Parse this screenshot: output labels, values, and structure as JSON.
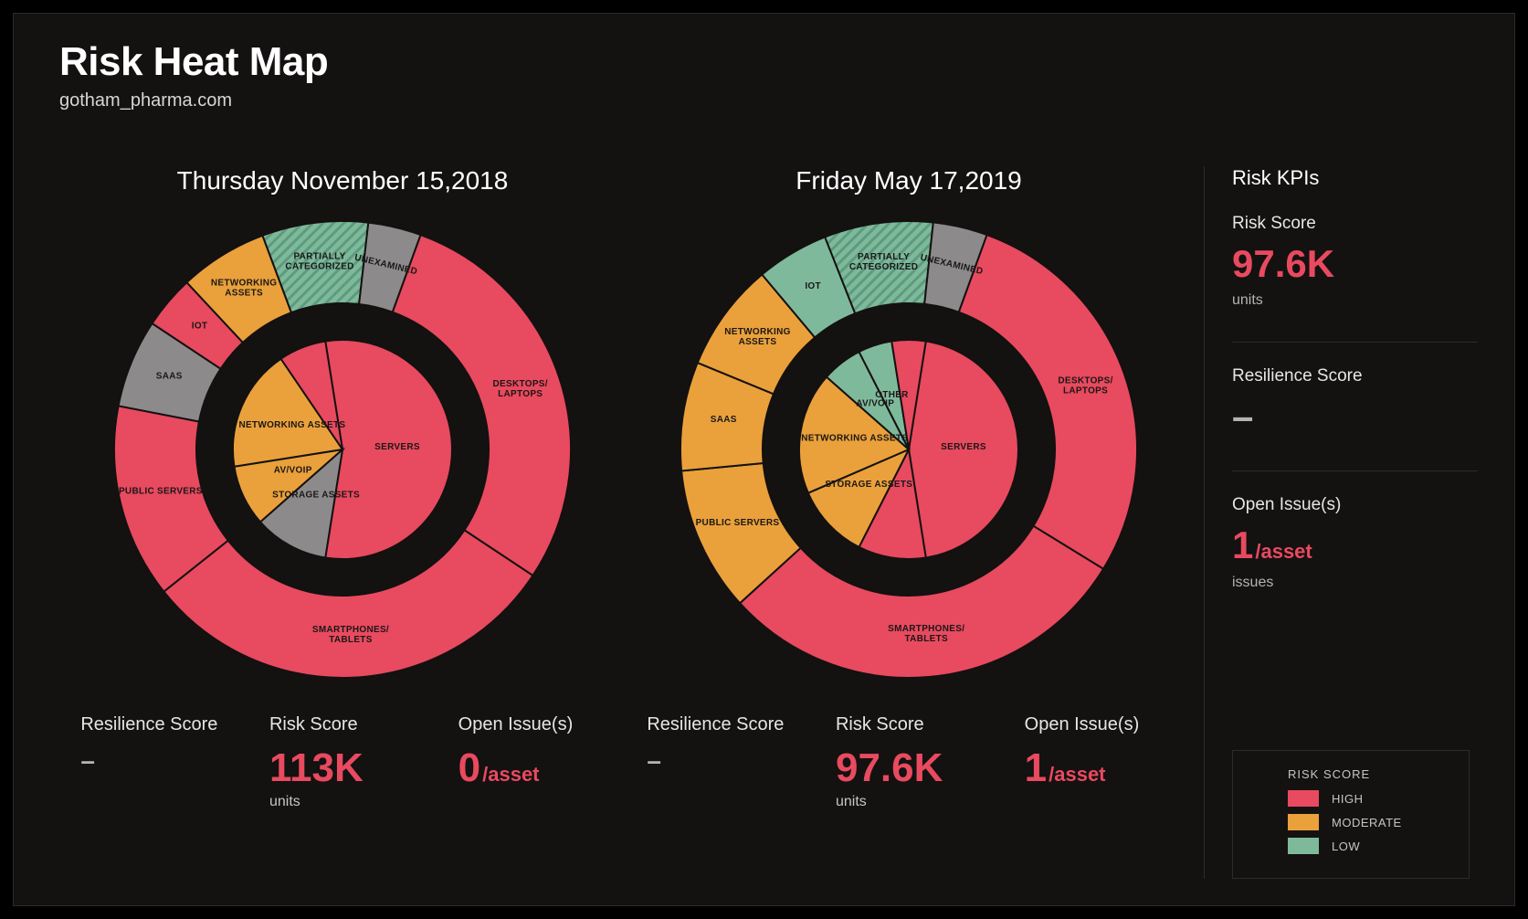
{
  "header": {
    "title": "Risk Heat Map",
    "subtitle": "gotham_pharma.com"
  },
  "colors": {
    "background": "#141111",
    "page_background": "#000000",
    "border": "#2e2a2a",
    "text": "#e6e6e6",
    "text_muted": "#b5b3b3",
    "accent_red": "#e84a5f",
    "high": "#e84a5f",
    "moderate": "#eaa13b",
    "low": "#7fb99b",
    "grey": "#8c8a8a",
    "slice_stroke": "#141111",
    "slice_label": "#1a1717"
  },
  "chartA": {
    "title": "Thursday November 15,2018",
    "type": "nested-donut",
    "outer_radius": 250,
    "outer_inner_radius": 160,
    "inner_radius": 120,
    "inner_inner_radius": 0,
    "gap_color": "#141111",
    "slice_stroke_width": 2,
    "label_fontsize": 10,
    "outer": [
      {
        "label": "DESKTOPS/\nLAPTOPS",
        "value": 23,
        "color": "#e84a5f"
      },
      {
        "label": "SMARTPHONES/\nTABLETS",
        "value": 24,
        "color": "#e84a5f"
      },
      {
        "label": "PUBLIC SERVERS",
        "value": 11,
        "color": "#e84a5f"
      },
      {
        "label": "SAAS",
        "value": 5,
        "color": "#8c8a8a"
      },
      {
        "label": "IOT",
        "value": 3,
        "color": "#e84a5f"
      },
      {
        "label": "NETWORKING\nASSETS",
        "value": 5,
        "color": "#eaa13b"
      },
      {
        "label": "PARTIALLY\nCATEGORIZED",
        "value": 6,
        "color": "#7fb99b",
        "hatched": true
      },
      {
        "label": "UNEXAMINED",
        "value": 3,
        "color": "#8c8a8a",
        "rotate_label": true
      }
    ],
    "inner": [
      {
        "label": "SERVERS",
        "value": 55,
        "color": "#e84a5f"
      },
      {
        "label": "STORAGE ASSETS",
        "value": 11,
        "color": "#8c8a8a"
      },
      {
        "label": "AV/VOIP",
        "value": 9,
        "color": "#eaa13b"
      },
      {
        "label": "NETWORKING ASSETS",
        "value": 18,
        "color": "#eaa13b"
      },
      {
        "label": "",
        "value": 7,
        "color": "#e84a5f"
      }
    ],
    "stats": {
      "resilience_label": "Resilience Score",
      "resilience_value": "–",
      "risk_label": "Risk Score",
      "risk_value": "113K",
      "risk_unit": "units",
      "issues_label": "Open Issue(s)",
      "issues_value": "0",
      "issues_suffix": "/asset"
    }
  },
  "chartB": {
    "title": "Friday May 17,2019",
    "type": "nested-donut",
    "outer_radius": 250,
    "outer_inner_radius": 160,
    "inner_radius": 120,
    "inner_inner_radius": 0,
    "gap_color": "#141111",
    "slice_stroke_width": 2,
    "label_fontsize": 10,
    "outer": [
      {
        "label": "DESKTOPS/\nLAPTOPS",
        "value": 22,
        "color": "#e84a5f"
      },
      {
        "label": "SMARTPHONES/\nTABLETS",
        "value": 23,
        "color": "#e84a5f"
      },
      {
        "label": "PUBLIC SERVERS",
        "value": 8,
        "color": "#eaa13b"
      },
      {
        "label": "SAAS",
        "value": 6,
        "color": "#eaa13b"
      },
      {
        "label": "NETWORKING\nASSETS",
        "value": 6,
        "color": "#eaa13b"
      },
      {
        "label": "IOT",
        "value": 4,
        "color": "#7fb99b"
      },
      {
        "label": "PARTIALLY\nCATEGORIZED",
        "value": 6,
        "color": "#7fb99b",
        "hatched": true
      },
      {
        "label": "UNEXAMINED",
        "value": 3,
        "color": "#8c8a8a",
        "rotate_label": true
      }
    ],
    "inner": [
      {
        "label": "SERVERS",
        "value": 45,
        "color": "#e84a5f"
      },
      {
        "label": "",
        "value": 10,
        "color": "#e84a5f"
      },
      {
        "label": "STORAGE ASSETS",
        "value": 11,
        "color": "#eaa13b"
      },
      {
        "label": "NETWORKING ASSETS",
        "value": 18,
        "color": "#eaa13b"
      },
      {
        "label": "AV/VOIP",
        "value": 6,
        "color": "#7fb99b"
      },
      {
        "label": "OTHER",
        "value": 5,
        "color": "#7fb99b"
      },
      {
        "label": "",
        "value": 5,
        "color": "#e84a5f"
      }
    ],
    "stats": {
      "resilience_label": "Resilience Score",
      "resilience_value": "–",
      "risk_label": "Risk Score",
      "risk_value": "97.6K",
      "risk_unit": "units",
      "issues_label": "Open Issue(s)",
      "issues_value": "1",
      "issues_suffix": "/asset"
    }
  },
  "sidebar": {
    "title": "Risk KPIs",
    "kpis": [
      {
        "label": "Risk Score",
        "value": "97.6K",
        "unit": "units",
        "color": "#e84a5f"
      },
      {
        "label": "Resilience Score",
        "value": "–",
        "unit": "",
        "color": "#b5b3b3"
      },
      {
        "label": "Open Issue(s)",
        "value": "1",
        "suffix": "/asset",
        "unit": "issues",
        "color": "#e84a5f"
      }
    ],
    "legend": {
      "title": "RISK SCORE",
      "items": [
        {
          "label": "HIGH",
          "color": "#e84a5f"
        },
        {
          "label": "MODERATE",
          "color": "#eaa13b"
        },
        {
          "label": "LOW",
          "color": "#7fb99b"
        }
      ]
    }
  }
}
